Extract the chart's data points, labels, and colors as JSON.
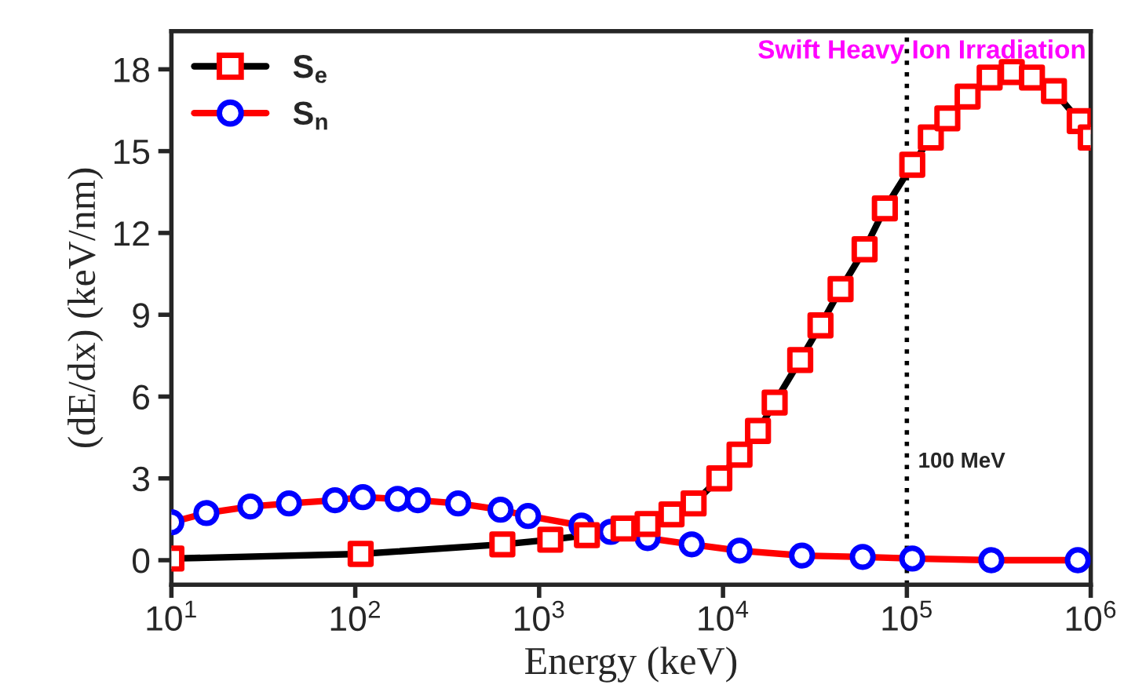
{
  "chart_data": {
    "type": "line",
    "xlabel": "Energy (keV)",
    "ylabel": "(dE/dx) (keV/nm)",
    "log": "x",
    "xlim": [
      10,
      1000000
    ],
    "xticks": [
      {
        "value": 10,
        "label": "10$^{1}$"
      },
      {
        "value": 100,
        "label": "10$^{2}$"
      },
      {
        "value": 1000,
        "label": "10$^{3}$"
      },
      {
        "value": 10000,
        "label": "10$^{4}$"
      },
      {
        "value": 100000,
        "label": "10$^{5}$"
      },
      {
        "value": 1000000,
        "label": "10$^{6}$"
      }
    ],
    "ylim": [
      -0.9,
      19.4
    ],
    "yticks": [
      0,
      3,
      6,
      9,
      12,
      15,
      18
    ],
    "grid": false,
    "legend": "top left",
    "series": [
      {
        "name": "S$_{e}$",
        "color": "#000000",
        "colors": [
          "#ff0000",
          "#ff0000",
          "#ff0000",
          "#ff0000",
          "#ff0000",
          "#ff0000",
          "#ff0000",
          "#ff0000",
          "#ff0000",
          "#ff0000",
          "#ff0000",
          "#ff0000",
          "#ff0000",
          "#ff0000",
          "#ff0000",
          "#ff0000",
          "#ff0000",
          "#ff0000",
          "#ff0000",
          "#ff0000",
          "#ff0000",
          "#ff0000",
          "#ff0000",
          "#ff0000",
          "#ff0000",
          "#ff0000",
          "#ff0000",
          "#ff0000"
        ],
        "marker": "square",
        "x": [
          10,
          107,
          631,
          1150,
          1820,
          2880,
          3890,
          5250,
          6920,
          9550,
          12300,
          15500,
          19100,
          26300,
          33900,
          43600,
          58900,
          75900,
          107000,
          135000,
          166000,
          214000,
          282000,
          372000,
          479000,
          631000,
          871000,
          1000000
        ],
        "values": [
          0.06,
          0.23,
          0.58,
          0.75,
          0.92,
          1.16,
          1.33,
          1.68,
          2.08,
          3.0,
          3.87,
          4.74,
          5.78,
          7.34,
          8.61,
          9.94,
          11.4,
          12.9,
          14.5,
          15.5,
          16.2,
          17.0,
          17.7,
          17.9,
          17.7,
          17.2,
          16.1,
          15.5
        ]
      },
      {
        "name": "S$_{n}$",
        "color": "#ff0000",
        "colors": [
          "#0000ff",
          "#0000ff",
          "#0000ff",
          "#0000ff",
          "#0000ff",
          "#0000ff",
          "#0000ff",
          "#0000ff",
          "#0000ff",
          "#0000ff",
          "#0000ff",
          "#0000ff",
          "#0000ff",
          "#0000ff",
          "#0000ff",
          "#0000ff",
          "#0000ff",
          "#0000ff",
          "#0000ff",
          "#0000ff",
          "#0000ff"
        ],
        "marker": "circle",
        "x": [
          10,
          15.5,
          26.9,
          43.6,
          77.6,
          110,
          170,
          219,
          363,
          617,
          871,
          1700,
          2450,
          3890,
          6760,
          12300,
          26900,
          57500,
          107000,
          288000,
          851000
        ],
        "values": [
          1.39,
          1.73,
          1.97,
          2.08,
          2.2,
          2.31,
          2.25,
          2.2,
          2.08,
          1.85,
          1.62,
          1.27,
          1.04,
          0.81,
          0.58,
          0.35,
          0.17,
          0.12,
          0.06,
          0.0,
          0.0
        ]
      }
    ],
    "ref_lines": [
      {
        "axis": "x",
        "value": 100000,
        "label": "100 MeV",
        "line_style": "dotted",
        "color": "#000000"
      }
    ],
    "annotations": [
      "Swift Heavy Ion Irradiation"
    ]
  }
}
